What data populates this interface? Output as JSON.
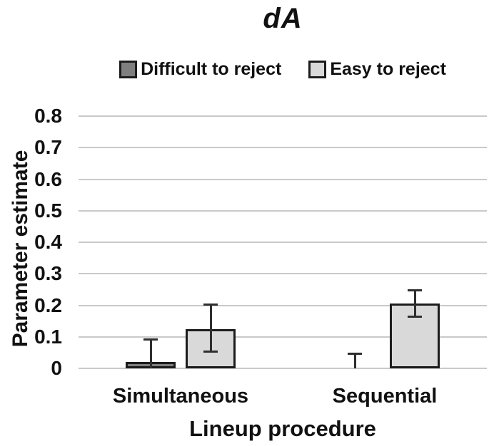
{
  "chart_data": {
    "type": "bar",
    "title": "dA",
    "xlabel": "Lineup procedure",
    "ylabel": "Parameter estimate",
    "categories": [
      "Simultaneous",
      "Sequential"
    ],
    "series": [
      {
        "name": "Difficult to reject",
        "fill": "#7f7f7f",
        "values": [
          0.02,
          0.0
        ]
      },
      {
        "name": "Easy to reject",
        "fill": "#d9d9d9",
        "values": [
          0.125,
          0.205
        ]
      }
    ],
    "error_bars": [
      {
        "series": 0,
        "category": 0,
        "top": 0.095,
        "bottom": 0.0,
        "top_cap": true,
        "bottom_cap": false
      },
      {
        "series": 0,
        "category": 1,
        "top": 0.05,
        "bottom": 0.0,
        "top_cap": true,
        "bottom_cap": false
      },
      {
        "series": 1,
        "category": 0,
        "top": 0.205,
        "bottom": 0.05,
        "top_cap": true,
        "bottom_cap": true
      },
      {
        "series": 1,
        "category": 1,
        "top": 0.25,
        "bottom": 0.16,
        "top_cap": true,
        "bottom_cap": true
      }
    ],
    "y_ticks": [
      "0",
      "0.1",
      "0.2",
      "0.3",
      "0.4",
      "0.5",
      "0.6",
      "0.7",
      "0.8"
    ],
    "ylim": [
      0,
      0.8
    ],
    "grid": "horizontal",
    "legend_position": "top",
    "colors": {
      "gridline": "#c9c9c9",
      "bar_border": "#1c1c1c",
      "error_bar": "#2e2e2e",
      "text": "#111111"
    }
  }
}
